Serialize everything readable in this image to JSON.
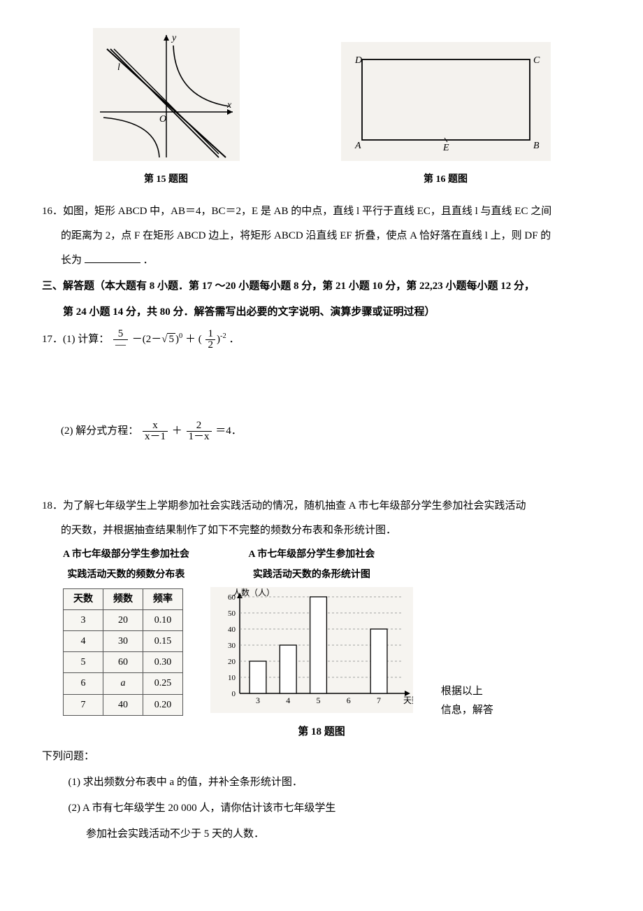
{
  "fig15": {
    "caption": "第 15 题图",
    "y_label": "y",
    "x_label": "x",
    "l_label": "l",
    "o_label": "O",
    "bg": "#f4f2ee",
    "axis_color": "#000000",
    "hyperbola_color": "#000000",
    "line_color": "#000000"
  },
  "fig16": {
    "caption": "第 16 题图",
    "labels": {
      "A": "A",
      "B": "B",
      "C": "C",
      "D": "D",
      "E": "E"
    },
    "bg": "#f4f2ee",
    "stroke": "#000000"
  },
  "q16_text_1": "16．如图，矩形 ABCD 中，AB＝4，BC＝2，E 是 AB 的中点，直线 l 平行于直线 EC，且直线 l 与直线 EC 之间",
  "q16_text_2": "的距离为 2，点 F 在矩形 ABCD 边上，将矩形 ABCD 沿直线 EF 折叠，使点 A 恰好落在直线 l 上，则 DF 的",
  "q16_text_3": "长为",
  "q16_period": "．",
  "section3_line1": "三、解答题（本大题有 8 小题．第 17 ～20 小题每小题 8 分，第 21 小题 10 分，第 22,23 小题每小题 12 分，",
  "section3_line2": "第 24 小题 14 分，共 80 分．解答需写出必要的文字说明、演算步骤或证明过程）",
  "q17_label": "17．(1) 计算：",
  "q17_frac1_num": "5",
  "q17_frac1_den": "—",
  "q17_minus": "－(2－",
  "q17_sqrt": "5",
  "q17_after_sqrt": ")",
  "q17_exp0": "0",
  "q17_plus": " ＋ (",
  "q17_half_num": "1",
  "q17_half_den": "2",
  "q17_close": ")",
  "q17_expn2": "-2",
  "q17_end": " ．",
  "q17_2_label": "(2) 解分式方程：",
  "q17_2_f1_num": "x",
  "q17_2_f1_den": "x－1",
  "q17_2_plus": "＋",
  "q17_2_f2_num": "2",
  "q17_2_f2_den": "1－x",
  "q17_2_eq": "＝4．",
  "q18_text_1": "18．为了解七年级学生上学期参加社会实践活动的情况，随机抽查 A 市七年级部分学生参加社会实践活动",
  "q18_text_2": "的天数，并根据抽查结果制作了如下不完整的频数分布表和条形统计图．",
  "q18_table_title_1": "A 市七年级部分学生参加社会",
  "q18_table_title_2": "实践活动天数的频数分布表",
  "q18_chart_title_1": "A 市七年级部分学生参加社会",
  "q18_chart_title_2": "实践活动天数的条形统计图",
  "freq_table": {
    "headers": [
      "天数",
      "频数",
      "频率"
    ],
    "rows": [
      [
        "3",
        "20",
        "0.10"
      ],
      [
        "4",
        "30",
        "0.15"
      ],
      [
        "5",
        "60",
        "0.30"
      ],
      [
        "6",
        "a",
        "0.25"
      ],
      [
        "7",
        "40",
        "0.20"
      ]
    ]
  },
  "bar_chart": {
    "y_label": "人数（人）",
    "x_label": "天数（天）",
    "y_ticks": [
      0,
      10,
      20,
      30,
      40,
      50,
      60
    ],
    "y_max": 60,
    "categories": [
      "3",
      "4",
      "5",
      "6",
      "7"
    ],
    "values": [
      20,
      30,
      60,
      null,
      40
    ],
    "bar_fill": "#ffffff",
    "bar_stroke": "#000000",
    "axis_color": "#000000",
    "guide_color": "#888888",
    "bg": "#f6f4f0"
  },
  "fig18_caption": "第 18 题图",
  "q18_side_1": "根据以上",
  "q18_side_2": "信息，解答",
  "q18_after": "下列问题：",
  "q18_sub1": "(1) 求出频数分布表中 a 的值，并补全条形统计图．",
  "q18_sub2_1": "(2) A 市有七年级学生 20 000 人，请你估计该市七年级学生",
  "q18_sub2_2": "参加社会实践活动不少于 5 天的人数．"
}
